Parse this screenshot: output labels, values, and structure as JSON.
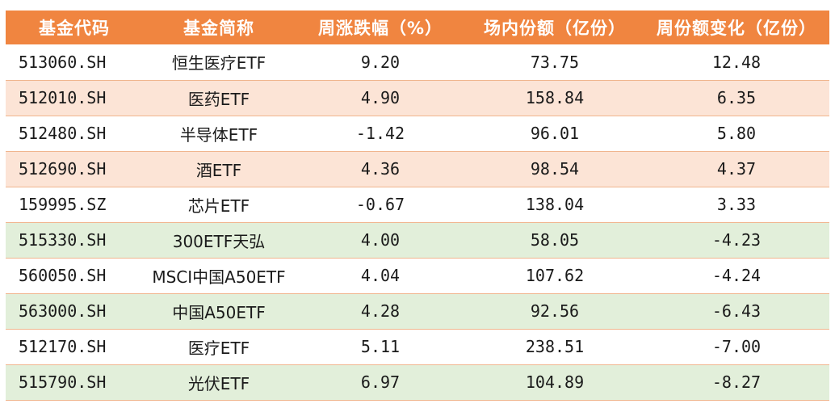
{
  "headers": [
    "基金代码",
    "基金简称",
    "周涨跌幅（%）",
    "场内份额（亿份）",
    "周份额变化（亿份）"
  ],
  "colors": {
    "header_bg": "#F08540",
    "row_orange": "#FCE4D6",
    "row_green": "#E2EFDA",
    "row_white": "#ffffff"
  },
  "rows": [
    {
      "code": "513060.SH",
      "name": "恒生医疗ETF",
      "weekly_change": "9.20",
      "shares": "73.75",
      "share_change": "12.48",
      "bg": "white"
    },
    {
      "code": "512010.SH",
      "name": "医药ETF",
      "weekly_change": "4.90",
      "shares": "158.84",
      "share_change": "6.35",
      "bg": "orange"
    },
    {
      "code": "512480.SH",
      "name": "半导体ETF",
      "weekly_change": "-1.42",
      "shares": "96.01",
      "share_change": "5.80",
      "bg": "white"
    },
    {
      "code": "512690.SH",
      "name": "酒ETF",
      "weekly_change": "4.36",
      "shares": "98.54",
      "share_change": "4.37",
      "bg": "orange"
    },
    {
      "code": "159995.SZ",
      "name": "芯片ETF",
      "weekly_change": "-0.67",
      "shares": "138.04",
      "share_change": "3.33",
      "bg": "white"
    },
    {
      "code": "515330.SH",
      "name": "300ETF天弘",
      "weekly_change": "4.00",
      "shares": "58.05",
      "share_change": "-4.23",
      "bg": "green"
    },
    {
      "code": "560050.SH",
      "name": "MSCI中国A50ETF",
      "weekly_change": "4.04",
      "shares": "107.62",
      "share_change": "-4.24",
      "bg": "white"
    },
    {
      "code": "563000.SH",
      "name": "中国A50ETF",
      "weekly_change": "4.28",
      "shares": "92.56",
      "share_change": "-6.43",
      "bg": "green"
    },
    {
      "code": "512170.SH",
      "name": "医疗ETF",
      "weekly_change": "5.11",
      "shares": "238.51",
      "share_change": "-7.00",
      "bg": "white"
    },
    {
      "code": "515790.SH",
      "name": "光伏ETF",
      "weekly_change": "6.97",
      "shares": "104.89",
      "share_change": "-8.27",
      "bg": "green"
    }
  ]
}
